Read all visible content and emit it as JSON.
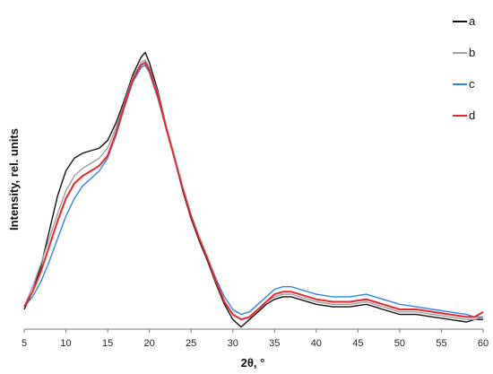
{
  "chart_data": {
    "type": "line",
    "xlabel": "2θ, °",
    "ylabel": "Intensity, rel. units",
    "xlim": [
      5,
      60
    ],
    "ylim": [
      0,
      1.1
    ],
    "xticks": [
      "5",
      "10",
      "15",
      "20",
      "25",
      "30",
      "35",
      "40",
      "45",
      "50",
      "55",
      "60"
    ],
    "grid": false,
    "legend_position": "top-right",
    "series": [
      {
        "name": "a",
        "color": "#111111",
        "x": [
          5,
          6,
          7,
          8,
          9,
          10,
          11,
          12,
          13,
          14,
          15,
          16,
          17,
          18,
          19,
          19.5,
          20,
          21,
          22,
          23,
          24,
          25,
          26,
          27,
          28,
          29,
          30,
          31,
          32,
          33,
          34,
          35,
          36,
          37,
          38,
          40,
          42,
          44,
          46,
          47,
          48,
          50,
          52,
          54,
          56,
          58,
          59,
          60
        ],
        "values": [
          0.05,
          0.12,
          0.22,
          0.36,
          0.5,
          0.6,
          0.65,
          0.67,
          0.68,
          0.69,
          0.72,
          0.79,
          0.88,
          0.98,
          1.05,
          1.07,
          1.03,
          0.92,
          0.78,
          0.65,
          0.52,
          0.41,
          0.32,
          0.24,
          0.15,
          0.07,
          0.01,
          -0.02,
          0.01,
          0.04,
          0.07,
          0.09,
          0.1,
          0.1,
          0.09,
          0.07,
          0.06,
          0.06,
          0.07,
          0.06,
          0.05,
          0.03,
          0.03,
          0.02,
          0.01,
          0.0,
          0.01,
          0.01
        ]
      },
      {
        "name": "b",
        "color": "#9e9e9e",
        "x": [
          5,
          6,
          7,
          8,
          9,
          10,
          11,
          12,
          13,
          14,
          15,
          16,
          17,
          18,
          19,
          19.5,
          20,
          21,
          22,
          23,
          24,
          25,
          26,
          27,
          28,
          29,
          30,
          31,
          32,
          33,
          34,
          35,
          36,
          37,
          38,
          40,
          42,
          44,
          46,
          47,
          48,
          50,
          52,
          54,
          56,
          58,
          59,
          60
        ],
        "values": [
          0.06,
          0.14,
          0.23,
          0.33,
          0.43,
          0.52,
          0.58,
          0.61,
          0.63,
          0.65,
          0.69,
          0.77,
          0.87,
          0.97,
          1.03,
          1.04,
          1.01,
          0.91,
          0.78,
          0.66,
          0.53,
          0.42,
          0.33,
          0.25,
          0.16,
          0.08,
          0.03,
          0.01,
          0.02,
          0.05,
          0.08,
          0.1,
          0.11,
          0.11,
          0.1,
          0.08,
          0.07,
          0.07,
          0.08,
          0.07,
          0.06,
          0.04,
          0.04,
          0.03,
          0.02,
          0.01,
          0.01,
          0.02
        ]
      },
      {
        "name": "c",
        "color": "#2e86de",
        "x": [
          5,
          6,
          7,
          8,
          9,
          10,
          11,
          12,
          13,
          14,
          15,
          16,
          17,
          18,
          19,
          19.5,
          20,
          21,
          22,
          23,
          24,
          25,
          26,
          27,
          28,
          29,
          30,
          31,
          32,
          33,
          34,
          35,
          36,
          37,
          38,
          40,
          42,
          44,
          46,
          47,
          48,
          50,
          52,
          54,
          56,
          58,
          59,
          60
        ],
        "values": [
          0.06,
          0.1,
          0.16,
          0.24,
          0.33,
          0.42,
          0.49,
          0.54,
          0.57,
          0.6,
          0.65,
          0.74,
          0.85,
          0.95,
          1.01,
          1.02,
          0.99,
          0.89,
          0.77,
          0.65,
          0.53,
          0.42,
          0.33,
          0.25,
          0.17,
          0.1,
          0.05,
          0.03,
          0.04,
          0.07,
          0.1,
          0.13,
          0.14,
          0.14,
          0.13,
          0.11,
          0.1,
          0.1,
          0.11,
          0.1,
          0.09,
          0.07,
          0.06,
          0.05,
          0.04,
          0.03,
          0.02,
          0.02
        ]
      },
      {
        "name": "d",
        "color": "#e8262b",
        "x": [
          5,
          6,
          7,
          8,
          9,
          10,
          11,
          12,
          13,
          14,
          15,
          16,
          17,
          18,
          19,
          19.5,
          20,
          21,
          22,
          23,
          24,
          25,
          26,
          27,
          28,
          29,
          30,
          31,
          32,
          33,
          34,
          35,
          36,
          37,
          38,
          40,
          42,
          44,
          46,
          47,
          48,
          50,
          52,
          54,
          56,
          58,
          59,
          60
        ],
        "values": [
          0.06,
          0.12,
          0.2,
          0.3,
          0.4,
          0.49,
          0.55,
          0.58,
          0.6,
          0.62,
          0.66,
          0.75,
          0.86,
          0.96,
          1.02,
          1.03,
          1.0,
          0.9,
          0.77,
          0.65,
          0.53,
          0.42,
          0.33,
          0.25,
          0.16,
          0.08,
          0.03,
          0.01,
          0.02,
          0.05,
          0.08,
          0.11,
          0.12,
          0.12,
          0.11,
          0.09,
          0.08,
          0.08,
          0.09,
          0.08,
          0.07,
          0.05,
          0.05,
          0.04,
          0.03,
          0.02,
          0.02,
          0.04
        ]
      }
    ]
  }
}
